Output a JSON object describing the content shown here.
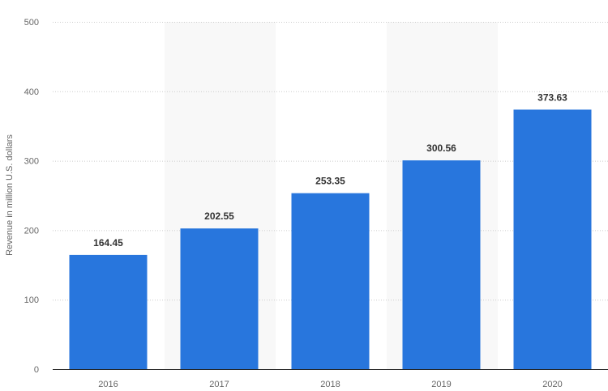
{
  "chart_data": {
    "type": "bar",
    "categories": [
      "2016",
      "2017",
      "2018",
      "2019",
      "2020"
    ],
    "values": [
      164.45,
      202.55,
      253.35,
      300.56,
      373.63
    ],
    "value_labels": [
      "164.45",
      "202.55",
      "253.35",
      "300.56",
      "373.63"
    ],
    "title": "",
    "xlabel": "",
    "ylabel": "Revenue in million U.S. dollars",
    "ylim": [
      0,
      500
    ],
    "yticks": [
      0,
      100,
      200,
      300,
      400,
      500
    ],
    "grid": true,
    "bar_color": "#2876dd",
    "band_color": "#f8f8f8"
  }
}
